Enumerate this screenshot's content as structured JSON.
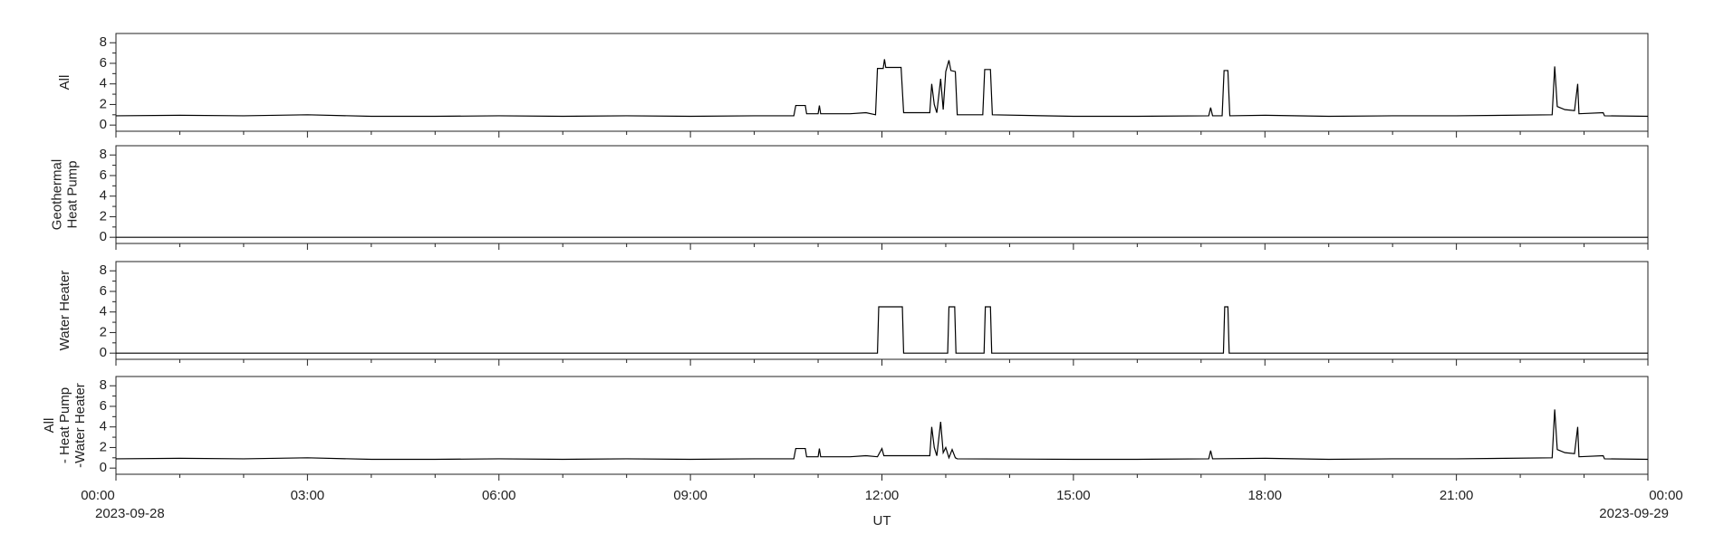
{
  "chart_data": [
    {
      "type": "line",
      "ylabel": [
        "All"
      ],
      "xlim": [
        0,
        24
      ],
      "ylim": [
        -0.6,
        8.9
      ],
      "yticks": [
        0,
        2,
        4,
        6,
        8
      ],
      "yminor": [
        1,
        3,
        5,
        7
      ],
      "color": "#000000",
      "x": [
        0,
        1,
        2,
        3,
        4,
        5,
        6,
        7,
        8,
        9,
        10,
        10.62,
        10.65,
        10.8,
        10.82,
        11.0,
        11.02,
        11.04,
        11.5,
        11.75,
        11.9,
        11.93,
        12.02,
        12.04,
        12.06,
        12.3,
        12.34,
        12.75,
        12.78,
        12.82,
        12.86,
        12.92,
        12.96,
        13.0,
        13.05,
        13.08,
        13.15,
        13.18,
        13.58,
        13.61,
        13.7,
        13.73,
        15,
        16,
        17.12,
        17.15,
        17.18,
        17.33,
        17.36,
        17.42,
        17.45,
        18,
        19,
        20,
        21,
        22.5,
        22.54,
        22.58,
        22.7,
        22.85,
        22.9,
        22.92,
        23.3,
        23.32,
        24
      ],
      "values": [
        0.9,
        0.95,
        0.9,
        1.0,
        0.85,
        0.85,
        0.9,
        0.85,
        0.9,
        0.85,
        0.9,
        0.9,
        1.9,
        1.9,
        1.1,
        1.1,
        1.9,
        1.1,
        1.1,
        1.2,
        1.0,
        5.5,
        5.5,
        6.4,
        5.6,
        5.6,
        1.2,
        1.2,
        4.0,
        2.0,
        1.2,
        4.5,
        1.5,
        5.2,
        6.3,
        5.3,
        5.2,
        1.0,
        1.0,
        5.4,
        5.4,
        1.0,
        0.85,
        0.85,
        0.9,
        1.7,
        0.9,
        0.9,
        5.3,
        5.3,
        0.9,
        0.95,
        0.85,
        0.9,
        0.9,
        1.0,
        5.7,
        1.8,
        1.5,
        1.4,
        4.0,
        1.1,
        1.2,
        0.9,
        0.85
      ]
    },
    {
      "type": "line",
      "ylabel": [
        "Geothermal",
        "Heat Pump"
      ],
      "xlim": [
        0,
        24
      ],
      "ylim": [
        -0.6,
        8.9
      ],
      "yticks": [
        0,
        2,
        4,
        6,
        8
      ],
      "yminor": [
        1,
        3,
        5,
        7
      ],
      "color": "#000000",
      "x": [
        0,
        24
      ],
      "values": [
        0,
        0
      ]
    },
    {
      "type": "line",
      "ylabel": [
        "Water Heater"
      ],
      "xlim": [
        0,
        24
      ],
      "ylim": [
        -0.6,
        8.9
      ],
      "yticks": [
        0,
        2,
        4,
        6,
        8
      ],
      "yminor": [
        1,
        3,
        5,
        7
      ],
      "color": "#000000",
      "x": [
        0,
        11.93,
        11.95,
        12.32,
        12.34,
        13.03,
        13.05,
        13.14,
        13.16,
        13.6,
        13.62,
        13.7,
        13.72,
        17.35,
        17.37,
        17.42,
        17.44,
        24
      ],
      "values": [
        0,
        0,
        4.5,
        4.5,
        0,
        0,
        4.5,
        4.5,
        0,
        0,
        4.5,
        4.5,
        0,
        0,
        4.5,
        4.5,
        0,
        0
      ]
    },
    {
      "type": "line",
      "ylabel": [
        "All",
        "- Heat Pump",
        "-Water Heater"
      ],
      "xlabel": "UT",
      "xlim": [
        0,
        24
      ],
      "ylim": [
        -0.6,
        8.9
      ],
      "yticks": [
        0,
        2,
        4,
        6,
        8
      ],
      "yminor": [
        1,
        3,
        5,
        7
      ],
      "color": "#000000",
      "xticks": [
        {
          "value": 0,
          "label": "00:00"
        },
        {
          "value": 3,
          "label": "03:00"
        },
        {
          "value": 6,
          "label": "06:00"
        },
        {
          "value": 9,
          "label": "09:00"
        },
        {
          "value": 12,
          "label": "12:00"
        },
        {
          "value": 15,
          "label": "15:00"
        },
        {
          "value": 18,
          "label": "18:00"
        },
        {
          "value": 21,
          "label": "21:00"
        },
        {
          "value": 24,
          "label": "00:00"
        }
      ],
      "xminor": [
        1,
        2,
        4,
        5,
        7,
        8,
        10,
        11,
        13,
        14,
        16,
        17,
        19,
        20,
        22,
        23
      ],
      "x_date_labels": [
        {
          "value": 0,
          "label": "2023-09-28"
        },
        {
          "value": 24,
          "label": "2023-09-29"
        }
      ],
      "x": [
        0,
        1,
        2,
        3,
        4,
        5,
        6,
        7,
        8,
        9,
        10,
        10.62,
        10.65,
        10.8,
        10.82,
        11.0,
        11.02,
        11.04,
        11.5,
        11.75,
        11.93,
        12.0,
        12.03,
        12.3,
        12.75,
        12.78,
        12.82,
        12.86,
        12.92,
        12.96,
        13.0,
        13.05,
        13.1,
        13.15,
        13.18,
        15,
        16,
        17.12,
        17.15,
        17.18,
        18,
        19,
        20,
        21,
        22.5,
        22.54,
        22.58,
        22.7,
        22.85,
        22.9,
        22.92,
        23.3,
        23.32,
        24
      ],
      "values": [
        0.9,
        0.95,
        0.9,
        1.0,
        0.85,
        0.85,
        0.9,
        0.85,
        0.9,
        0.85,
        0.9,
        0.9,
        1.9,
        1.9,
        1.1,
        1.1,
        1.9,
        1.1,
        1.1,
        1.2,
        1.1,
        1.9,
        1.2,
        1.2,
        1.2,
        4.0,
        2.0,
        1.2,
        4.5,
        1.5,
        2.0,
        1.0,
        1.8,
        1.0,
        0.9,
        0.85,
        0.85,
        0.9,
        1.7,
        0.9,
        0.95,
        0.85,
        0.9,
        0.9,
        1.0,
        5.7,
        1.8,
        1.5,
        1.4,
        4.0,
        1.1,
        1.2,
        0.9,
        0.85
      ]
    }
  ]
}
